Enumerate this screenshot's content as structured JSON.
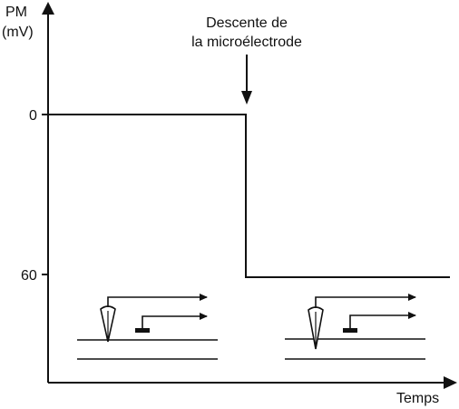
{
  "diagram": {
    "y_axis_label_line1": "PM",
    "y_axis_label_line2": "(mV)",
    "x_axis_label": "Temps",
    "tick_zero": "0",
    "tick_sixty": "60",
    "annotation_line1": "Descente de",
    "annotation_line2": "la microélectrode"
  }
}
